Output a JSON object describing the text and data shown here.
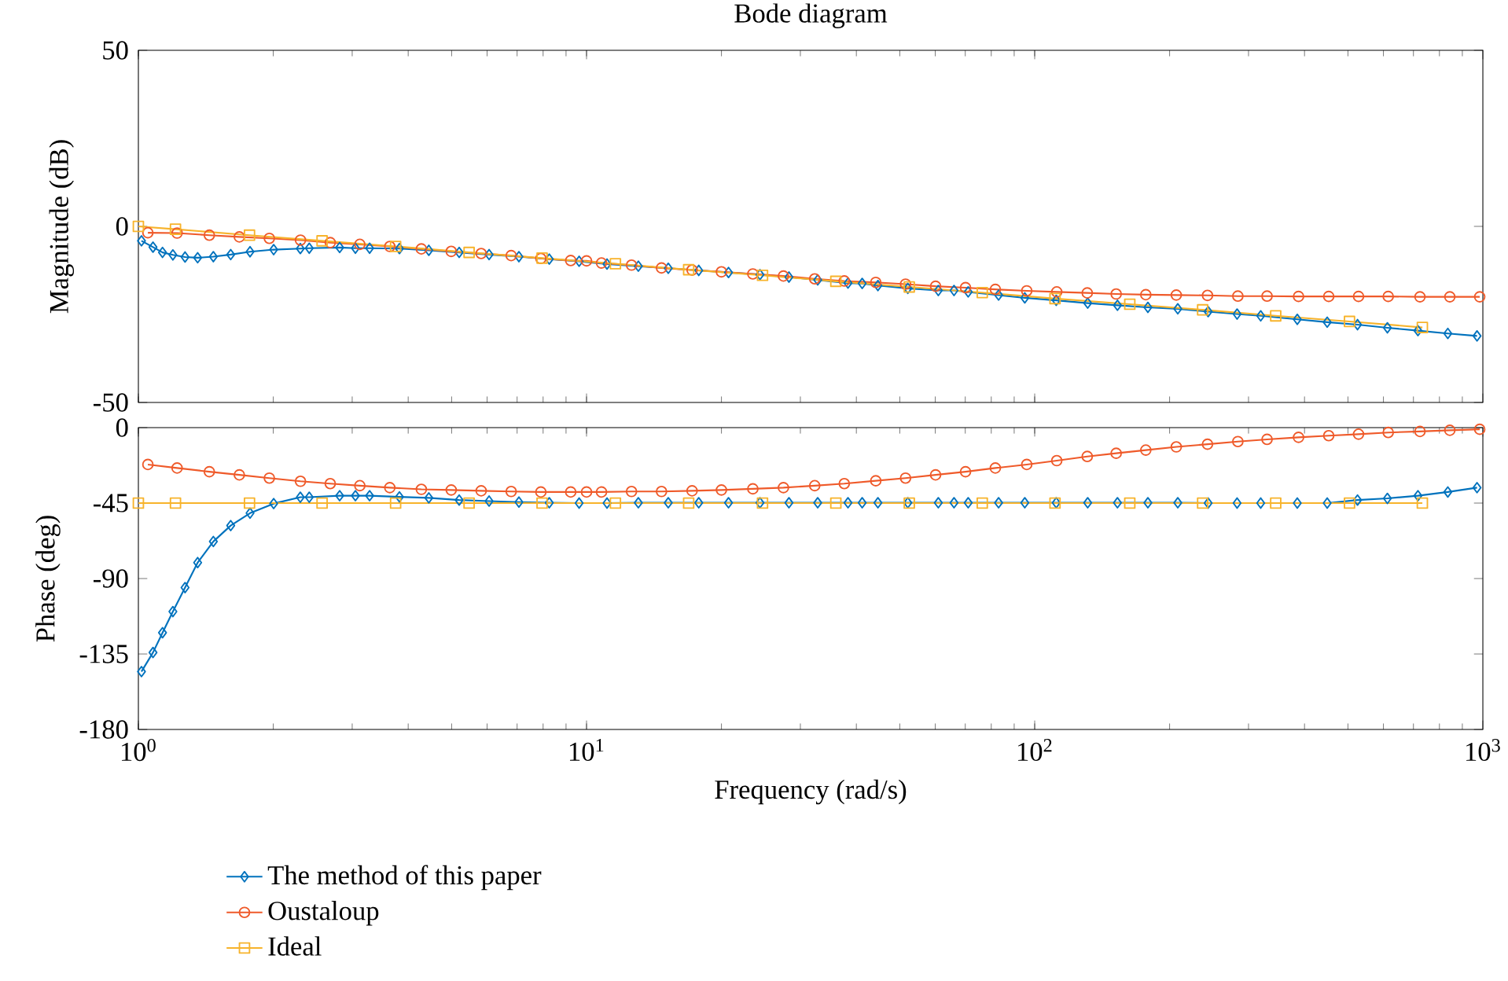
{
  "chart_data": [
    {
      "type": "line",
      "title": "Bode diagram",
      "ylabel": "Magnitude (dB)",
      "log": "x",
      "xlim": [
        1,
        1000
      ],
      "xticks": [
        1,
        10,
        100,
        1000
      ],
      "ylim": [
        -50,
        50
      ],
      "yticks": [
        -50,
        0,
        50
      ],
      "tick_labels": "y",
      "line_style": "solid",
      "series": [
        {
          "color": "#0072bd",
          "marker": "diamond",
          "x": [
            1.016,
            1.078,
            1.132,
            1.194,
            1.271,
            1.356,
            1.47,
            1.607,
            1.775,
            2.004,
            2.298,
            2.406,
            2.813,
            3.05,
            3.281,
            3.824,
            4.447,
            5.198,
            6.062,
            7.066,
            8.258,
            9.627,
            11.11,
            13.05,
            15.22,
            17.8,
            20.74,
            24.38,
            28.29,
            32.8,
            38.32,
            41.22,
            44.69,
            52.11,
            60.95,
            66.07,
            71.06,
            83.07,
            95.04,
            111.7,
            131.3,
            153,
            178.9,
            208.6,
            243.8,
            282.9,
            319.4,
            385.5,
            449.5,
            525.2,
            612.4,
            716.4,
            835.3,
            970.5
          ],
          "values": [
            -4.1,
            -5.9,
            -7.4,
            -8.1,
            -8.7,
            -8.9,
            -8.6,
            -8.0,
            -7.2,
            -6.6,
            -6.3,
            -6.2,
            -6.0,
            -6.2,
            -6.2,
            -6.3,
            -6.8,
            -7.4,
            -8.0,
            -8.6,
            -9.3,
            -9.9,
            -10.7,
            -11.3,
            -11.9,
            -12.5,
            -13.1,
            -13.7,
            -14.4,
            -15.2,
            -16.1,
            -16.2,
            -16.8,
            -17.6,
            -18.2,
            -18.2,
            -18.6,
            -19.5,
            -20.3,
            -21.0,
            -21.8,
            -22.4,
            -23.0,
            -23.4,
            -24.2,
            -24.9,
            -25.4,
            -26.4,
            -27.2,
            -27.9,
            -28.8,
            -29.6,
            -30.4,
            -31.1
          ]
        },
        {
          "color": "#ef5a2a",
          "marker": "circle",
          "x": [
            1.05,
            1.22,
            1.44,
            1.68,
            1.96,
            2.3,
            2.68,
            3.12,
            3.64,
            4.28,
            4.99,
            5.82,
            6.79,
            7.91,
            9.22,
            10,
            10.8,
            12.6,
            14.7,
            17.2,
            20,
            23.5,
            27.5,
            32.3,
            37.6,
            44.2,
            51.5,
            60.1,
            70.1,
            81.7,
            96,
            112,
            131,
            152,
            177,
            207,
            243,
            284,
            330,
            388,
            453,
            528,
            615,
            724,
            844,
            984
          ],
          "values": [
            -1.8,
            -1.9,
            -2.5,
            -3.0,
            -3.4,
            -3.9,
            -4.6,
            -5.1,
            -5.7,
            -6.4,
            -7.1,
            -7.7,
            -8.3,
            -9.1,
            -9.7,
            -9.8,
            -10.4,
            -11.0,
            -11.8,
            -12.4,
            -12.9,
            -13.5,
            -14.1,
            -14.9,
            -15.5,
            -15.9,
            -16.4,
            -17.0,
            -17.4,
            -17.9,
            -18.3,
            -18.6,
            -18.9,
            -19.2,
            -19.4,
            -19.5,
            -19.6,
            -19.8,
            -19.8,
            -19.9,
            -19.9,
            -19.9,
            -19.9,
            -20.0,
            -20.0,
            -20.0
          ]
        },
        {
          "color": "#f7b32b",
          "marker": "square",
          "x": [
            1,
            1.21,
            1.77,
            2.57,
            3.75,
            5.47,
            7.96,
            11.6,
            16.9,
            24.7,
            36,
            52.5,
            76.4,
            111,
            163,
            237,
            345,
            504,
            733
          ],
          "values": [
            0,
            -0.8,
            -2.5,
            -4.1,
            -5.7,
            -7.4,
            -9.0,
            -10.6,
            -12.3,
            -13.9,
            -15.6,
            -17.2,
            -18.8,
            -20.5,
            -22.1,
            -23.7,
            -25.4,
            -27.0,
            -28.7
          ]
        }
      ]
    },
    {
      "type": "line",
      "xlabel": "Frequency (rad/s)",
      "ylabel": "Phase (deg)",
      "log": "x",
      "xlim": [
        1,
        1000
      ],
      "xticks": [
        {
          "value": 1,
          "label": "10$^{0}$"
        },
        {
          "value": 10,
          "label": "10$^{1}$"
        },
        {
          "value": 100,
          "label": "10$^{2}$"
        },
        {
          "value": 1000,
          "label": "10$^{3}$"
        }
      ],
      "ylim": [
        -180,
        0
      ],
      "yticks": [
        -180,
        -135,
        -90,
        -45,
        0
      ],
      "legend": "bottom",
      "line_style": "solid",
      "series": [
        {
          "name": "The method of this paper",
          "color": "#0072bd",
          "marker": "diamond",
          "x": [
            1.016,
            1.078,
            1.132,
            1.194,
            1.271,
            1.356,
            1.47,
            1.607,
            1.775,
            2.004,
            2.298,
            2.406,
            2.813,
            3.05,
            3.281,
            3.824,
            4.447,
            5.198,
            6.062,
            7.066,
            8.258,
            9.627,
            11.11,
            13.05,
            15.22,
            17.8,
            20.74,
            24.38,
            28.29,
            32.8,
            38.32,
            41.22,
            44.69,
            52.11,
            60.95,
            66.07,
            71.06,
            83.07,
            95.04,
            111.7,
            131.3,
            153,
            178.9,
            208.6,
            243.8,
            282.9,
            319.4,
            385.5,
            449.5,
            525.2,
            612.4,
            716.4,
            835.3,
            970.5
          ],
          "values": [
            -145.5,
            -134.1,
            -122.3,
            -109.7,
            -95.4,
            -80.5,
            -67.9,
            -58.4,
            -51.0,
            -45.3,
            -41.5,
            -41.5,
            -40.6,
            -40.6,
            -40.6,
            -41.3,
            -41.9,
            -43.2,
            -43.8,
            -44.4,
            -44.8,
            -45,
            -45,
            -44.8,
            -44.8,
            -44.8,
            -44.8,
            -44.8,
            -44.8,
            -44.8,
            -44.8,
            -44.8,
            -44.8,
            -44.8,
            -44.8,
            -44.8,
            -44.8,
            -44.8,
            -44.8,
            -44.8,
            -44.8,
            -44.8,
            -44.8,
            -44.8,
            -45,
            -45,
            -45,
            -45,
            -45,
            -43.2,
            -42.2,
            -40.6,
            -38.4,
            -35.8
          ]
        },
        {
          "name": "Oustaloup",
          "color": "#ef5a2a",
          "marker": "circle",
          "x": [
            1.05,
            1.22,
            1.44,
            1.68,
            1.96,
            2.3,
            2.68,
            3.12,
            3.64,
            4.28,
            4.99,
            5.82,
            6.79,
            7.91,
            9.22,
            10,
            10.8,
            12.6,
            14.7,
            17.2,
            20,
            23.5,
            27.5,
            32.3,
            37.6,
            44.2,
            51.5,
            60.1,
            70.1,
            81.7,
            96,
            112,
            131,
            152,
            177,
            207,
            243,
            284,
            330,
            388,
            453,
            528,
            615,
            724,
            844,
            984
          ],
          "values": [
            -22.0,
            -24.1,
            -26.3,
            -28.2,
            -30.1,
            -32.0,
            -33.4,
            -34.6,
            -35.8,
            -36.8,
            -37.2,
            -37.7,
            -38.1,
            -38.4,
            -38.4,
            -38.4,
            -38.4,
            -38.1,
            -38.1,
            -37.7,
            -37.2,
            -36.5,
            -35.8,
            -34.6,
            -33.4,
            -31.7,
            -30.1,
            -28.2,
            -26.3,
            -24.1,
            -22.0,
            -19.7,
            -17.2,
            -15.3,
            -13.4,
            -11.5,
            -9.9,
            -8.3,
            -7.0,
            -5.8,
            -4.8,
            -3.9,
            -2.9,
            -2.3,
            -1.6,
            -1.0
          ]
        },
        {
          "name": "Ideal",
          "color": "#f7b32b",
          "marker": "square",
          "x": [
            1,
            1.21,
            1.77,
            2.57,
            3.75,
            5.47,
            7.96,
            11.6,
            16.9,
            24.7,
            36,
            52.5,
            76.4,
            111,
            163,
            237,
            345,
            504,
            733
          ],
          "values": [
            -45,
            -45,
            -45,
            -45,
            -45,
            -45,
            -45,
            -45,
            -45,
            -45,
            -45,
            -45,
            -45,
            -45,
            -45,
            -45,
            -45,
            -45,
            -45
          ]
        }
      ]
    }
  ]
}
